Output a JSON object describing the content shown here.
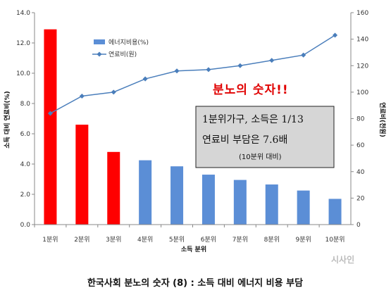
{
  "chart_data": {
    "type": "bar",
    "categories": [
      "1분위",
      "2분위",
      "3분위",
      "4분위",
      "5분위",
      "6분위",
      "7분위",
      "8분위",
      "9분위",
      "10분위"
    ],
    "series": [
      {
        "name": "에너지비용(%)",
        "kind": "bar",
        "axis": "left",
        "values": [
          12.9,
          6.6,
          4.8,
          4.25,
          3.85,
          3.3,
          2.95,
          2.65,
          2.25,
          1.7
        ],
        "colors": [
          "#ff0000",
          "#ff0000",
          "#ff0000",
          "#5b8ed6",
          "#5b8ed6",
          "#5b8ed6",
          "#5b8ed6",
          "#5b8ed6",
          "#5b8ed6",
          "#5b8ed6"
        ]
      },
      {
        "name": "연료비(원)",
        "kind": "line",
        "axis": "right",
        "values": [
          84,
          97,
          100,
          110,
          116,
          117,
          120,
          124,
          128,
          143
        ],
        "color": "#4a7ebb"
      }
    ],
    "xlabel": "소득 분위",
    "ylabel": "소득 대비 연료비(%)",
    "y2label": "연료비(천원)",
    "ylim": [
      0,
      14
    ],
    "y2lim": [
      0,
      160
    ],
    "yticks": [
      "0.0",
      "2.0",
      "4.0",
      "6.0",
      "8.0",
      "10.0",
      "12.0",
      "14.0"
    ],
    "y2ticks": [
      "0",
      "20",
      "40",
      "60",
      "80",
      "100",
      "120",
      "140",
      "160"
    ],
    "legend_position": "top-left",
    "grid": false
  },
  "annotation": {
    "title": "분노의 숫자!!",
    "line1": "1분위가구, 소득은 1/13",
    "line2": "연료비 부담은 7.6배",
    "line3": "(10분위 대비)"
  },
  "caption": "한국사회 분노의 숫자 (8) : 소득 대비 에너지 비용 부담",
  "watermark": "시사인"
}
